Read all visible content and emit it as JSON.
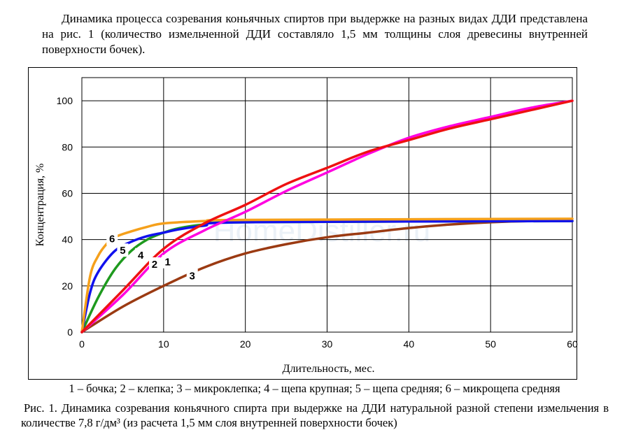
{
  "intro_text": "Динамика процесса созревания коньячных спиртов при выдержке на разных видах ДДИ представлена на рис. 1 (количество измельченной ДДИ составляло 1,5 мм толщины слоя древесины внутренней поверхности бочек).",
  "legend_text": "1 – бочка; 2 – клепка; 3 – микроклепка; 4 – щепа крупная; 5 – щепа средняя; 6 – микрощепа средняя",
  "caption_text": "Рис. 1. Динамика созревания коньячного спирта при выдержке на ДДИ натуральной разной степени измельчения в количестве 7,8 г/дм³ (из расчета 1,5 мм слоя внутренней поверхности бочек)",
  "watermark": "HomeDistiller.ru",
  "chart_data": {
    "type": "line",
    "xlabel": "Длительность, мес.",
    "ylabel": "Концентрация, %",
    "xlim": [
      0,
      60
    ],
    "ylim": [
      0,
      110
    ],
    "x_ticks": [
      0,
      10,
      20,
      30,
      40,
      50,
      60
    ],
    "y_ticks": [
      0,
      20,
      40,
      60,
      80,
      100
    ],
    "grid": true,
    "series": [
      {
        "name": "1",
        "color": "#ff00e0",
        "x": [
          0,
          5,
          10,
          15,
          20,
          25,
          30,
          35,
          40,
          45,
          50,
          55,
          60
        ],
        "y": [
          0,
          16,
          34,
          44,
          52,
          61,
          69,
          77,
          84,
          89,
          93,
          97,
          100
        ]
      },
      {
        "name": "2",
        "color": "#ee1111",
        "x": [
          0,
          5,
          10,
          15,
          20,
          25,
          30,
          35,
          40,
          45,
          50,
          55,
          60
        ],
        "y": [
          0,
          18,
          36,
          47,
          55,
          64,
          71,
          78,
          83,
          88,
          92,
          96,
          100
        ]
      },
      {
        "name": "3",
        "color": "#9b3a12",
        "x": [
          0,
          5,
          10,
          15,
          20,
          25,
          30,
          35,
          40,
          45,
          50,
          55,
          60
        ],
        "y": [
          0,
          11,
          20,
          28,
          34,
          38,
          41,
          43,
          45,
          46.5,
          47.5,
          48,
          48
        ]
      },
      {
        "name": "4",
        "color": "#1e9a1e",
        "x": [
          0,
          2,
          4,
          6,
          8,
          10,
          12,
          15,
          20,
          60
        ],
        "y": [
          0,
          15,
          27,
          35,
          40,
          43,
          45,
          46.5,
          47.5,
          48
        ]
      },
      {
        "name": "5",
        "color": "#1111ee",
        "x": [
          0,
          1,
          2,
          4,
          6,
          8,
          10,
          12,
          15,
          20,
          60
        ],
        "y": [
          0,
          17,
          26,
          35,
          39,
          41.5,
          43,
          44.5,
          46,
          47.5,
          48
        ]
      },
      {
        "name": "6",
        "color": "#f5a01b",
        "x": [
          0,
          1,
          2,
          3,
          4,
          6,
          8,
          10,
          15,
          20,
          60
        ],
        "y": [
          0,
          24,
          33,
          38,
          41,
          43.5,
          45.5,
          47,
          48,
          48.5,
          49
        ]
      }
    ],
    "markers": [
      {
        "label": "1",
        "x": 10.5,
        "y": 30
      },
      {
        "label": "2",
        "x": 8.9,
        "y": 29
      },
      {
        "label": "3",
        "x": 13.5,
        "y": 24
      },
      {
        "label": "4",
        "x": 7.2,
        "y": 33
      },
      {
        "label": "5",
        "x": 5,
        "y": 35
      },
      {
        "label": "6",
        "x": 3.7,
        "y": 40
      }
    ]
  }
}
